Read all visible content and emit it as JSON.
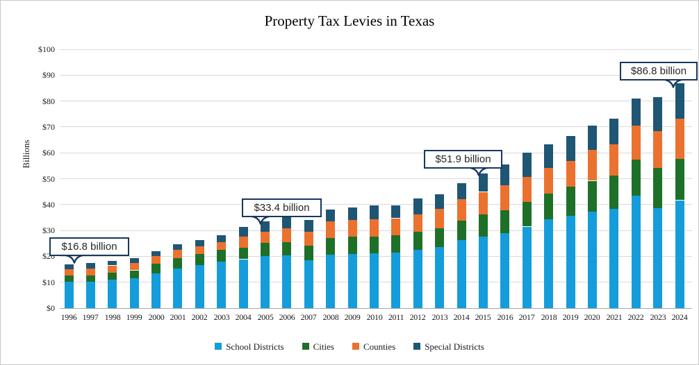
{
  "chart_data": {
    "type": "bar",
    "stacked": true,
    "title": "Property Tax Levies in Texas",
    "ylabel": "Billions",
    "xlabel": "",
    "ylim": [
      0,
      100
    ],
    "ytick_step": 10,
    "ytick_prefix": "$",
    "grid": true,
    "legend_position": "bottom",
    "categories": [
      1996,
      1997,
      1998,
      1999,
      2000,
      2001,
      2002,
      2003,
      2004,
      2005,
      2006,
      2007,
      2008,
      2009,
      2010,
      2011,
      2012,
      2013,
      2014,
      2015,
      2016,
      2017,
      2018,
      2019,
      2020,
      2021,
      2022,
      2023,
      2024
    ],
    "series": [
      {
        "name": "School Districts",
        "color": "#149dda",
        "values": [
          10.3,
          10.2,
          10.9,
          11.6,
          13.3,
          15.3,
          16.6,
          17.9,
          18.9,
          20.2,
          20.3,
          18.5,
          20.6,
          21.0,
          21.1,
          21.4,
          22.5,
          23.5,
          26.2,
          27.5,
          29.1,
          31.5,
          34.3,
          35.6,
          37.3,
          38.4,
          43.5,
          38.7,
          41.7
        ]
      },
      {
        "name": "Cities",
        "color": "#1e7029",
        "values": [
          2.2,
          2.5,
          2.7,
          3.0,
          3.8,
          3.9,
          4.3,
          4.5,
          4.5,
          4.9,
          5.2,
          5.7,
          6.4,
          6.7,
          6.5,
          6.8,
          7.0,
          7.4,
          7.6,
          8.8,
          8.7,
          9.4,
          9.9,
          11.2,
          11.9,
          12.7,
          13.8,
          15.5,
          15.9
        ]
      },
      {
        "name": "Counties",
        "color": "#eb712f",
        "values": [
          2.6,
          2.7,
          2.9,
          2.9,
          3.0,
          3.2,
          3.1,
          3.1,
          4.2,
          4.4,
          5.3,
          5.3,
          6.5,
          6.4,
          6.8,
          6.5,
          6.7,
          7.5,
          8.2,
          8.6,
          9.6,
          9.7,
          10.0,
          10.1,
          11.9,
          12.1,
          13.2,
          14.2,
          15.7
        ]
      },
      {
        "name": "Special Districts",
        "color": "#1f5674",
        "values": [
          1.7,
          2.0,
          1.8,
          1.8,
          2.0,
          2.2,
          2.4,
          2.7,
          3.7,
          3.9,
          4.2,
          4.5,
          4.7,
          4.8,
          5.2,
          5.0,
          6.1,
          5.5,
          6.4,
          7.0,
          8.2,
          9.5,
          9.0,
          9.5,
          9.3,
          10.1,
          10.4,
          13.0,
          13.5
        ]
      }
    ],
    "annotations": [
      {
        "label": "$16.8 billion",
        "year": 1996,
        "total": 16.8
      },
      {
        "label": "$33.4 billion",
        "year": 2005,
        "total": 33.4
      },
      {
        "label": "$51.9 billion",
        "year": 2015,
        "total": 51.9
      },
      {
        "label": "$86.8 billion",
        "year": 2024,
        "total": 86.8
      }
    ],
    "colors": {
      "callout_border": "#17375e",
      "gridline": "#d9d9d9",
      "axis_line": "#a6a6a6"
    }
  }
}
